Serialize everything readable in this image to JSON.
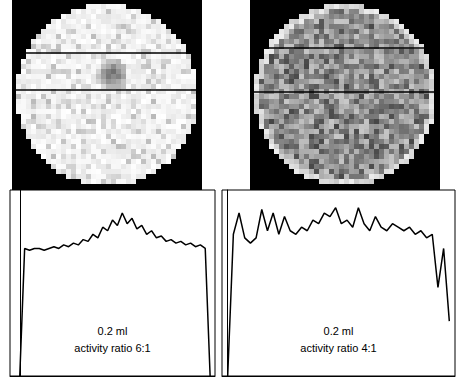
{
  "chart_data": [
    {
      "type": "line",
      "color": "#000000",
      "tick_labels": false,
      "grid": false,
      "annotation": [
        "0.2 ml",
        "activity ratio 6:1"
      ],
      "xlim": [
        -2,
        40
      ],
      "ylim": [
        0,
        105
      ],
      "x": [
        0,
        1,
        2,
        3,
        4,
        5,
        6,
        7,
        8,
        9,
        10,
        11,
        12,
        13,
        14,
        15,
        16,
        17,
        18,
        19,
        20,
        21,
        22,
        23,
        24,
        25,
        26,
        27,
        28,
        29,
        30,
        31,
        32,
        33,
        34,
        35,
        36,
        37,
        38,
        39
      ],
      "values": [
        0,
        72,
        71,
        72,
        72,
        71,
        72,
        73,
        72,
        74,
        73,
        75,
        74,
        77,
        76,
        80,
        78,
        84,
        82,
        88,
        85,
        92,
        86,
        89,
        83,
        85,
        80,
        82,
        78,
        79,
        76,
        77,
        75,
        76,
        74,
        75,
        73,
        74,
        72,
        0
      ]
    },
    {
      "type": "line",
      "color": "#000000",
      "tick_labels": false,
      "grid": false,
      "annotation": [
        "0.2 ml",
        "activity ratio 4:1"
      ],
      "xlim": [
        -1,
        40
      ],
      "ylim": [
        0,
        105
      ],
      "x": [
        0,
        1,
        2,
        3,
        4,
        5,
        6,
        7,
        8,
        9,
        10,
        11,
        12,
        13,
        14,
        15,
        16,
        17,
        18,
        19,
        20,
        21,
        22,
        23,
        24,
        25,
        26,
        27,
        28,
        29,
        30,
        31,
        32,
        33,
        34,
        35,
        36,
        37,
        38,
        39
      ],
      "values": [
        0,
        80,
        92,
        78,
        75,
        78,
        94,
        82,
        92,
        80,
        90,
        82,
        80,
        84,
        82,
        88,
        86,
        92,
        90,
        95,
        86,
        88,
        84,
        95,
        86,
        82,
        90,
        84,
        82,
        86,
        84,
        82,
        84,
        80,
        82,
        78,
        80,
        50,
        72,
        31
      ]
    }
  ]
}
